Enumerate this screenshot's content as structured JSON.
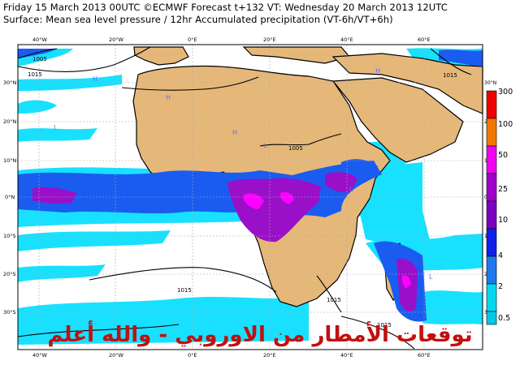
{
  "header": {
    "line1": "Friday 15 March 2013 00UTC ©ECMWF Forecast t+132 VT: Wednesday 20 March 2013 12UTC",
    "line2": "Surface: Mean sea level pressure / 12hr Accumulated precipitation (VT-6h/VT+6h)"
  },
  "axes": {
    "lon_top": [
      "40°W",
      "20°W",
      "0°E",
      "20°E",
      "40°E",
      "60°E"
    ],
    "lon_bottom": [
      "40°W",
      "20°W",
      "0°E",
      "20°E",
      "40°E",
      "60°E"
    ],
    "lat_left": [
      "30°N",
      "20°N",
      "10°N",
      "0°N",
      "10°S",
      "20°S",
      "30°S"
    ],
    "lat_right": [
      "30°N",
      "20°N",
      "10°N",
      "0°N",
      "10°S",
      "20°S",
      "30°S"
    ]
  },
  "isobars": [
    "1005",
    "1015",
    "1015",
    "1005",
    "1015",
    "1015",
    "1015"
  ],
  "pressure_centers": [
    "H",
    "H",
    "H",
    "L",
    "L",
    "L",
    "H",
    "L"
  ],
  "colorbar": {
    "labels": [
      "300",
      "100",
      "50",
      "25",
      "10",
      "4",
      "2",
      "0.5"
    ],
    "colors": [
      "#f00000",
      "#f07800",
      "#f000f0",
      "#a000c8",
      "#7a00c0",
      "#1020e8",
      "#1e78f0",
      "#00d8f0",
      "#00c8e6"
    ]
  },
  "colors": {
    "ocean": "#ffffff",
    "land": "#e5b87a",
    "light_precip": "#00e0ff",
    "moderate_precip": "#1060f0",
    "heavy_precip": "#9a10c8",
    "extreme_precip": "#ff00ff",
    "isobar": "#000000",
    "grid": "#b0b0b0"
  },
  "watermark": "توقعات الأمطار من الاوروبي - والله أعلم"
}
